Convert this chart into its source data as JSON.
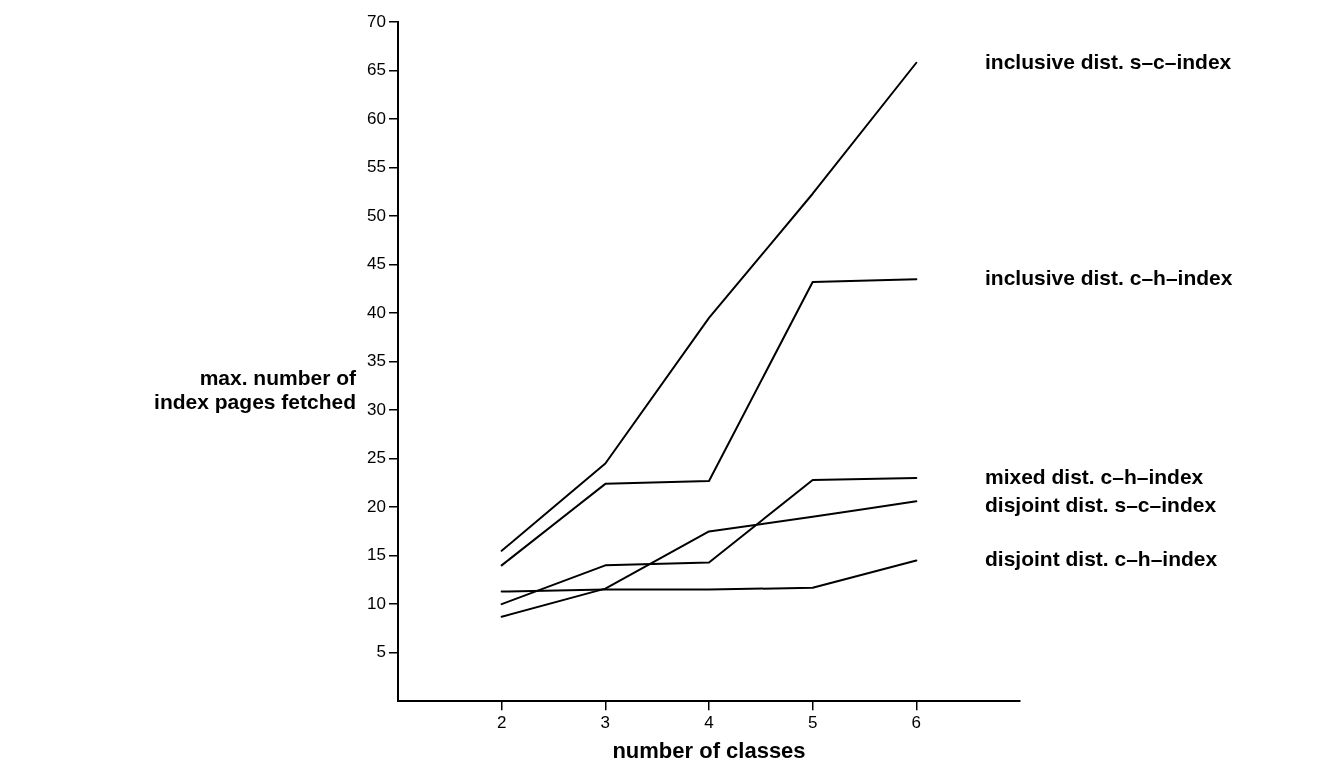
{
  "chart_data": {
    "type": "line",
    "xlabel": "number of classes",
    "ylabel": "max. number of\nindex pages fetched",
    "x": [
      2,
      3,
      4,
      5,
      6
    ],
    "xlim": [
      1,
      7
    ],
    "xticks": [
      2,
      3,
      4,
      5,
      6
    ],
    "ylim": [
      0,
      70
    ],
    "yticks": [
      5,
      10,
      15,
      20,
      25,
      30,
      35,
      40,
      45,
      50,
      55,
      60,
      65,
      70
    ],
    "grid": false,
    "legend": false,
    "marker": "none",
    "line_style": "solid",
    "series": [
      {
        "name": "inclusive dist. s–c–index",
        "color": "#000000",
        "values": [
          15.5,
          24.5,
          39.5,
          52.3,
          65.8
        ]
      },
      {
        "name": "inclusive dist. c–h–index",
        "color": "#000000",
        "values": [
          14.0,
          22.4,
          22.7,
          43.2,
          43.5
        ]
      },
      {
        "name": "mixed dist. c–h–index",
        "color": "#000000",
        "values": [
          10.0,
          14.0,
          14.3,
          22.8,
          23.0
        ]
      },
      {
        "name": "disjoint dist. s–c–index",
        "color": "#000000",
        "values": [
          8.7,
          11.6,
          17.5,
          19.0,
          20.6
        ]
      },
      {
        "name": "disjoint dist. c–h–index",
        "color": "#000000",
        "values": [
          11.3,
          11.5,
          11.5,
          11.7,
          14.5
        ]
      }
    ]
  }
}
